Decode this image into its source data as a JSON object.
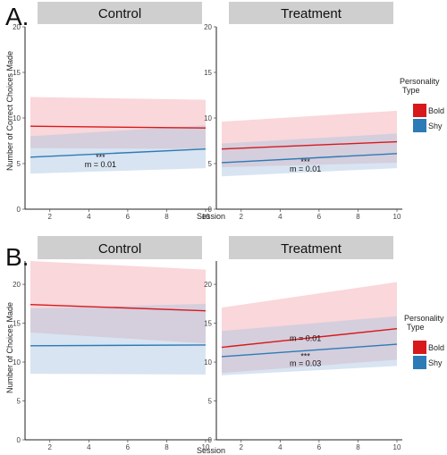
{
  "colors": {
    "bold": "#d7191c",
    "shy": "#2c7bb6",
    "bold_band": "#f4a6ad",
    "shy_band": "#a9c4e0"
  },
  "legend": {
    "title_line1": "Personality",
    "title_line2": "Type",
    "items": [
      {
        "label": "Bold",
        "color": "#d7191c"
      },
      {
        "label": "Shy",
        "color": "#2c7bb6"
      }
    ]
  },
  "chart_data": [
    {
      "type": "line",
      "panel_label": "A.",
      "ylabel": "Number of Correct Choices Made",
      "xlabel": "Session",
      "ylim": [
        0,
        20
      ],
      "yticks": [
        0,
        5,
        10,
        15,
        20
      ],
      "xlim": [
        1,
        10
      ],
      "xticks": [
        2,
        4,
        6,
        8,
        10
      ],
      "facets": [
        {
          "title": "Control",
          "series": [
            {
              "name": "Bold",
              "x": [
                1,
                10
              ],
              "y": [
                9.1,
                8.9
              ],
              "lower": [
                6.7,
                6.6
              ],
              "upper": [
                12.3,
                12.0
              ]
            },
            {
              "name": "Shy",
              "x": [
                1,
                10
              ],
              "y": [
                5.7,
                6.6
              ],
              "lower": [
                3.9,
                4.5
              ],
              "upper": [
                8.0,
                9.2
              ]
            }
          ],
          "annotations": [
            {
              "stars": "***",
              "text": "m = 0.01",
              "x": 4.6,
              "y": 5.4
            }
          ]
        },
        {
          "title": "Treatment",
          "series": [
            {
              "name": "Bold",
              "x": [
                1,
                10
              ],
              "y": [
                6.6,
                7.4
              ],
              "lower": [
                4.6,
                5.1
              ],
              "upper": [
                9.6,
                10.8
              ]
            },
            {
              "name": "Shy",
              "x": [
                1,
                10
              ],
              "y": [
                5.1,
                6.1
              ],
              "lower": [
                3.6,
                4.5
              ],
              "upper": [
                7.2,
                8.3
              ]
            }
          ],
          "annotations": [
            {
              "stars": "***",
              "text": "m = 0.01",
              "x": 5.3,
              "y": 4.9
            }
          ]
        }
      ]
    },
    {
      "type": "line",
      "panel_label": "B.",
      "ylabel": "Number of Choices Made",
      "xlabel": "Session",
      "ylim": [
        0,
        23
      ],
      "yticks": [
        0,
        5,
        10,
        15,
        20
      ],
      "xlim": [
        1,
        10
      ],
      "xticks": [
        2,
        4,
        6,
        8,
        10
      ],
      "facets": [
        {
          "title": "Control",
          "series": [
            {
              "name": "Bold",
              "x": [
                1,
                10
              ],
              "y": [
                17.4,
                16.6
              ],
              "lower": [
                13.8,
                12.4
              ],
              "upper": [
                23.0,
                21.9
              ]
            },
            {
              "name": "Shy",
              "x": [
                1,
                10
              ],
              "y": [
                12.1,
                12.2
              ],
              "lower": [
                8.5,
                8.4
              ],
              "upper": [
                16.9,
                17.5
              ]
            }
          ],
          "annotations": []
        },
        {
          "title": "Treatment",
          "series": [
            {
              "name": "Bold",
              "x": [
                1,
                10
              ],
              "y": [
                11.9,
                14.3
              ],
              "lower": [
                8.6,
                10.3
              ],
              "upper": [
                17.0,
                20.3
              ]
            },
            {
              "name": "Shy",
              "x": [
                1,
                10
              ],
              "y": [
                10.7,
                12.3
              ],
              "lower": [
                8.3,
                9.5
              ],
              "upper": [
                14.0,
                15.9
              ]
            }
          ],
          "annotations": [
            {
              "stars": "",
              "text": "m = 0.01",
              "x": 5.3,
              "y": 13.6
            },
            {
              "stars": "***",
              "text": "m = 0.03",
              "x": 5.3,
              "y": 10.4
            }
          ]
        }
      ]
    }
  ]
}
